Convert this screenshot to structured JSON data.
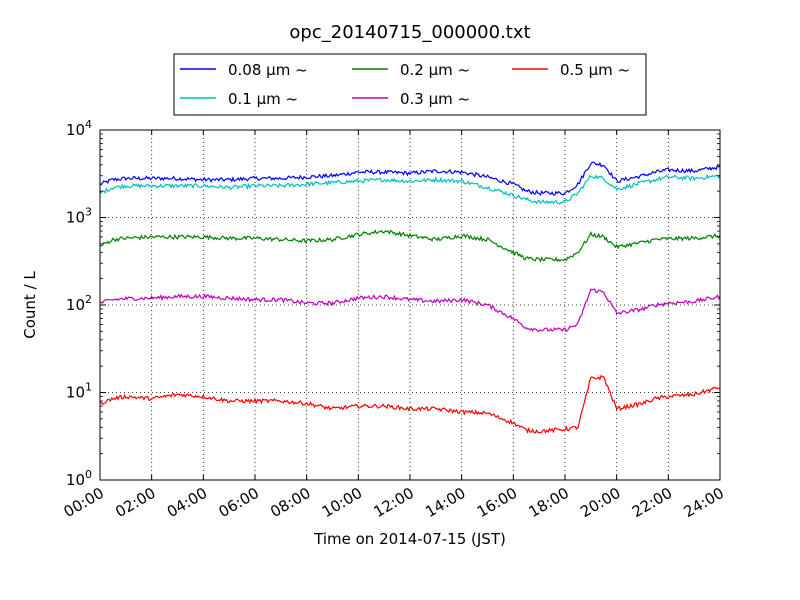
{
  "chart_data": {
    "type": "line",
    "title": "opc_20140715_000000.txt",
    "xlabel": "Time on 2014-07-15 (JST)",
    "ylabel": "Count / L",
    "yscale": "log",
    "xlim_hours": [
      0,
      24
    ],
    "ylim": [
      1,
      10000
    ],
    "grid": true,
    "legend_placement": "top-center",
    "x_tick_labels": [
      "00:00",
      "02:00",
      "04:00",
      "06:00",
      "08:00",
      "10:00",
      "12:00",
      "14:00",
      "16:00",
      "18:00",
      "20:00",
      "22:00",
      "24:00"
    ],
    "y_tick_labels": [
      {
        "base": "10",
        "exp": "0"
      },
      {
        "base": "10",
        "exp": "1"
      },
      {
        "base": "10",
        "exp": "2"
      },
      {
        "base": "10",
        "exp": "3"
      },
      {
        "base": "10",
        "exp": "4"
      }
    ],
    "x": [
      "00:00",
      "00:30",
      "01:00",
      "02:00",
      "03:00",
      "04:00",
      "05:00",
      "06:00",
      "07:00",
      "08:00",
      "09:00",
      "10:00",
      "11:00",
      "12:00",
      "13:00",
      "14:00",
      "15:00",
      "16:00",
      "16:30",
      "17:00",
      "18:00",
      "18:30",
      "19:00",
      "19:30",
      "20:00",
      "21:00",
      "21:30",
      "22:00",
      "23:00",
      "24:00"
    ],
    "series": [
      {
        "name": "0.08 μm ~",
        "color": "#0000ff",
        "values": [
          2400,
          2700,
          2800,
          2800,
          2800,
          2700,
          2700,
          2800,
          2800,
          2900,
          3000,
          3300,
          3300,
          3200,
          3400,
          3300,
          2900,
          2400,
          2000,
          1900,
          1900,
          2400,
          4200,
          4000,
          2600,
          3000,
          3300,
          3500,
          3400,
          3800
        ]
      },
      {
        "name": "0.1 μm ~",
        "color": "#00bfbf",
        "values": [
          1900,
          2200,
          2300,
          2300,
          2300,
          2300,
          2200,
          2300,
          2300,
          2400,
          2500,
          2600,
          2700,
          2600,
          2700,
          2600,
          2200,
          1800,
          1600,
          1500,
          1500,
          1900,
          3000,
          2800,
          2100,
          2500,
          2700,
          2900,
          2800,
          3000
        ]
      },
      {
        "name": "0.2 μm ~",
        "color": "#008000",
        "values": [
          470,
          560,
          580,
          600,
          600,
          600,
          580,
          580,
          560,
          540,
          560,
          640,
          700,
          620,
          560,
          620,
          560,
          400,
          340,
          330,
          330,
          400,
          640,
          600,
          460,
          520,
          560,
          570,
          580,
          620
        ]
      },
      {
        "name": "0.3 μm ~",
        "color": "#bf00bf",
        "values": [
          105,
          115,
          118,
          120,
          125,
          125,
          120,
          115,
          115,
          105,
          105,
          120,
          125,
          115,
          110,
          115,
          100,
          70,
          55,
          52,
          52,
          60,
          150,
          140,
          80,
          90,
          100,
          105,
          110,
          125
        ]
      },
      {
        "name": "0.5 μm ~",
        "color": "#ff0000",
        "values": [
          7.5,
          8.5,
          9,
          8.5,
          9.5,
          9,
          8,
          8,
          8,
          7.5,
          6.5,
          7,
          7,
          6.5,
          6.5,
          6,
          5.8,
          4.5,
          3.7,
          3.6,
          3.8,
          4,
          14.5,
          15,
          6.5,
          7.5,
          8.5,
          9,
          9.5,
          11.5
        ]
      }
    ]
  }
}
